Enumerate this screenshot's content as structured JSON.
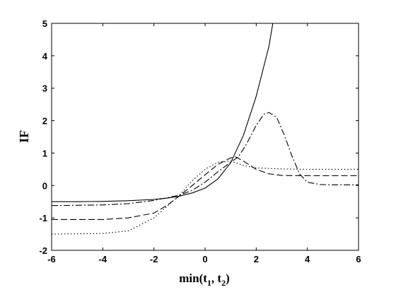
{
  "chart_data": {
    "type": "line",
    "title": "",
    "xlabel": {
      "main": "min(t",
      "sub1": "1",
      "sep": ", t",
      "sub2": "2",
      "close": ")"
    },
    "ylabel": "IF",
    "xlim": [
      -6,
      6
    ],
    "ylim": [
      -2,
      5
    ],
    "xticks": [
      "-6",
      "-4",
      "-2",
      "0",
      "2",
      "4",
      "6"
    ],
    "yticks": [
      "-2",
      "-1",
      "0",
      "1",
      "2",
      "3",
      "4",
      "5"
    ],
    "xtick_values": [
      -6,
      -4,
      -2,
      0,
      2,
      4,
      6
    ],
    "ytick_values": [
      -2,
      -1,
      0,
      1,
      2,
      3,
      4,
      5
    ],
    "grid": false,
    "legend": "none",
    "series": [
      {
        "style": "solid",
        "points": [
          [
            -6,
            -0.5
          ],
          [
            -5,
            -0.5
          ],
          [
            -4,
            -0.49
          ],
          [
            -3,
            -0.47
          ],
          [
            -2,
            -0.43
          ],
          [
            -1.5,
            -0.39
          ],
          [
            -1,
            -0.33
          ],
          [
            -0.5,
            -0.23
          ],
          [
            0,
            -0.08
          ],
          [
            0.5,
            0.2
          ],
          [
            1,
            0.7
          ],
          [
            1.5,
            1.55
          ],
          [
            2,
            2.75
          ],
          [
            2.5,
            4.3
          ],
          [
            2.65,
            5.0
          ]
        ]
      },
      {
        "style": "dashed",
        "points": [
          [
            -6,
            -1.05
          ],
          [
            -4,
            -1.05
          ],
          [
            -3,
            -1.0
          ],
          [
            -2,
            -0.85
          ],
          [
            -1.5,
            -0.62
          ],
          [
            -1,
            -0.32
          ],
          [
            -0.5,
            0.0
          ],
          [
            0,
            0.33
          ],
          [
            0.5,
            0.65
          ],
          [
            1,
            0.85
          ],
          [
            1.2,
            0.88
          ],
          [
            1.5,
            0.75
          ],
          [
            2,
            0.5
          ],
          [
            2.5,
            0.36
          ],
          [
            3,
            0.31
          ],
          [
            4,
            0.3
          ],
          [
            6,
            0.3
          ]
        ]
      },
      {
        "style": "dotted",
        "points": [
          [
            -6,
            -1.5
          ],
          [
            -4,
            -1.48
          ],
          [
            -3,
            -1.4
          ],
          [
            -2,
            -1.0
          ],
          [
            -1.5,
            -0.65
          ],
          [
            -1,
            -0.3
          ],
          [
            -0.5,
            0.15
          ],
          [
            0,
            0.5
          ],
          [
            0.5,
            0.72
          ],
          [
            1,
            0.75
          ],
          [
            1.5,
            0.62
          ],
          [
            2,
            0.54
          ],
          [
            3,
            0.51
          ],
          [
            4,
            0.5
          ],
          [
            6,
            0.5
          ]
        ]
      },
      {
        "style": "dashdot",
        "points": [
          [
            -6,
            -0.62
          ],
          [
            -4,
            -0.6
          ],
          [
            -3,
            -0.56
          ],
          [
            -2,
            -0.46
          ],
          [
            -1,
            -0.3
          ],
          [
            -0.5,
            -0.15
          ],
          [
            0,
            0.1
          ],
          [
            0.5,
            0.42
          ],
          [
            1,
            0.72
          ],
          [
            1.3,
            0.88
          ],
          [
            1.6,
            1.25
          ],
          [
            2,
            1.85
          ],
          [
            2.3,
            2.2
          ],
          [
            2.5,
            2.25
          ],
          [
            2.8,
            2.1
          ],
          [
            3.1,
            1.55
          ],
          [
            3.4,
            0.9
          ],
          [
            3.7,
            0.35
          ],
          [
            4,
            0.1
          ],
          [
            4.5,
            0.03
          ],
          [
            5,
            0.02
          ],
          [
            6,
            0.02
          ]
        ]
      }
    ]
  }
}
